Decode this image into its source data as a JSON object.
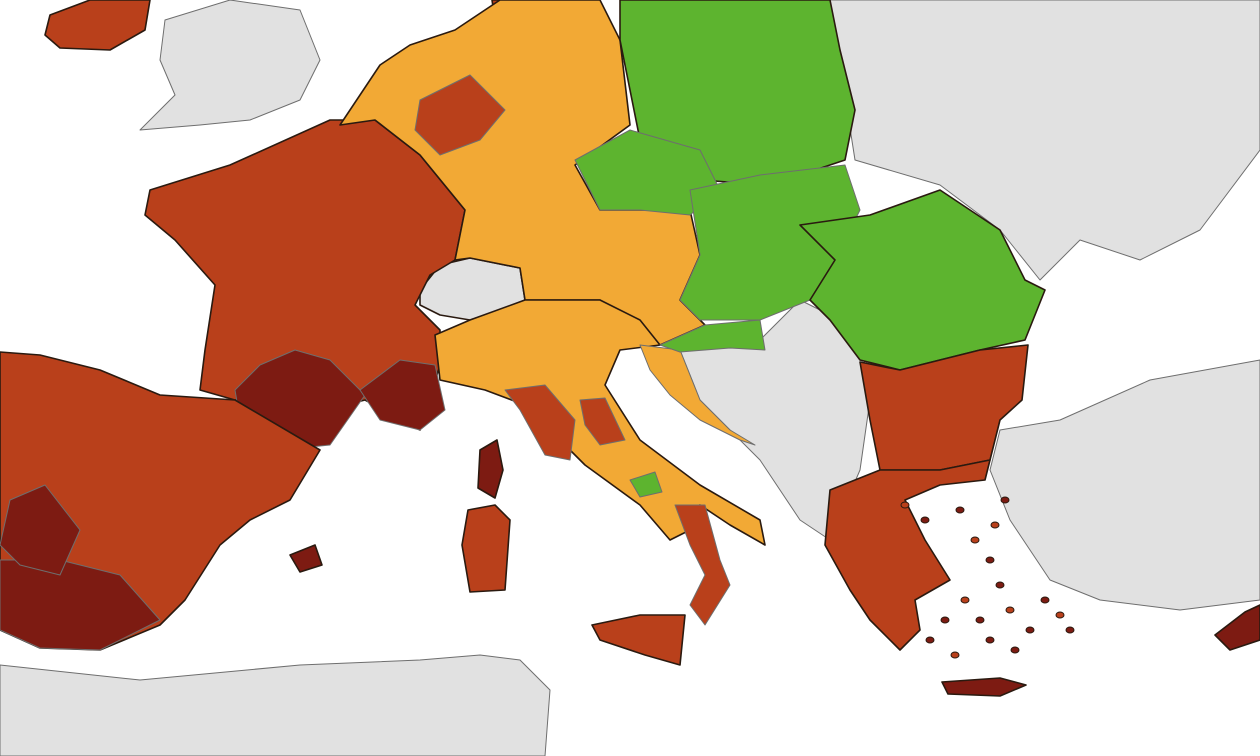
{
  "map": {
    "colors": {
      "sea": "#ffffff",
      "no_data_land": "#e1e1e1",
      "green": "#5db42f",
      "orange": "#f2a935",
      "red": "#b9401b",
      "dark_red": "#7d1b12"
    },
    "regions": [
      {
        "id": "uk",
        "color": "no_data_land"
      },
      {
        "id": "north-africa",
        "color": "no_data_land"
      },
      {
        "id": "eastern-europe",
        "color": "no_data_land"
      },
      {
        "id": "turkey",
        "color": "no_data_land"
      },
      {
        "id": "western-balkans",
        "color": "no_data_land"
      },
      {
        "id": "switzerland",
        "color": "no_data_land"
      },
      {
        "id": "ireland",
        "color": "red"
      },
      {
        "id": "denmark",
        "color": "red"
      },
      {
        "id": "france",
        "color": "red"
      },
      {
        "id": "france-southwest",
        "color": "dark_red"
      },
      {
        "id": "france-provence",
        "color": "dark_red"
      },
      {
        "id": "spain",
        "color": "red"
      },
      {
        "id": "spain-south",
        "color": "dark_red"
      },
      {
        "id": "spain-west",
        "color": "dark_red"
      },
      {
        "id": "benelux-germany-austria",
        "color": "orange"
      },
      {
        "id": "belgium-wallonia",
        "color": "red"
      },
      {
        "id": "italy",
        "color": "orange"
      },
      {
        "id": "italy-tuscany",
        "color": "red"
      },
      {
        "id": "italy-marche",
        "color": "red"
      },
      {
        "id": "italy-molise",
        "color": "green"
      },
      {
        "id": "italy-calabria",
        "color": "red"
      },
      {
        "id": "sicily",
        "color": "red"
      },
      {
        "id": "sardinia",
        "color": "red"
      },
      {
        "id": "corsica",
        "color": "dark_red"
      },
      {
        "id": "balearics",
        "color": "dark_red"
      },
      {
        "id": "croatia-coast",
        "color": "orange"
      },
      {
        "id": "poland",
        "color": "green"
      },
      {
        "id": "czechia",
        "color": "green"
      },
      {
        "id": "slovakia-hungary",
        "color": "green"
      },
      {
        "id": "romania",
        "color": "green"
      },
      {
        "id": "slovenia-croatia",
        "color": "green"
      },
      {
        "id": "bulgaria",
        "color": "red"
      },
      {
        "id": "greece",
        "color": "red"
      },
      {
        "id": "crete",
        "color": "dark_red"
      },
      {
        "id": "cyprus",
        "color": "dark_red"
      }
    ]
  }
}
